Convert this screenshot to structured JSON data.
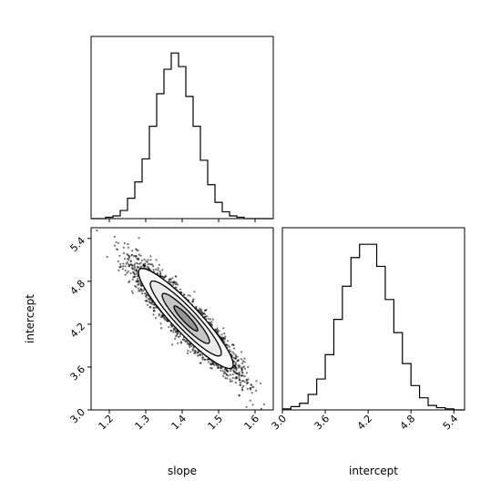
{
  "chart_data": [
    {
      "type": "histogram",
      "panel": "top-left",
      "variable": "slope",
      "bin_edges": [
        1.15,
        1.17,
        1.19,
        1.21,
        1.23,
        1.25,
        1.27,
        1.29,
        1.31,
        1.33,
        1.35,
        1.37,
        1.39,
        1.41,
        1.43,
        1.45,
        1.47,
        1.49,
        1.51,
        1.53,
        1.55,
        1.57,
        1.59,
        1.61,
        1.63,
        1.65
      ],
      "counts": [
        0,
        0,
        1,
        2,
        6,
        15,
        27,
        44,
        68,
        92,
        110,
        122,
        112,
        90,
        68,
        43,
        25,
        12,
        5,
        2,
        1,
        0,
        0,
        0,
        0
      ],
      "xlim": [
        1.15,
        1.65
      ]
    },
    {
      "type": "scatter",
      "panel": "bottom-left",
      "xlabel": "slope",
      "ylabel": "intercept",
      "xlim": [
        1.15,
        1.65
      ],
      "ylim": [
        3.0,
        5.55
      ],
      "xticks": [
        "1.2",
        "1.3",
        "1.4",
        "1.5",
        "1.6"
      ],
      "yticks": [
        "3.0",
        "3.6",
        "4.2",
        "4.8",
        "5.4"
      ],
      "center": [
        1.41,
        4.28
      ],
      "sd": [
        0.065,
        0.35
      ],
      "correlation": -0.92,
      "contour_levels_sigma": [
        0.5,
        1.0,
        1.5,
        2.0
      ],
      "density_cells": [
        {
          "x": 1.395,
          "y": 4.35,
          "weight": 1.0
        },
        {
          "x": 1.415,
          "y": 4.2,
          "weight": 0.75
        },
        {
          "x": 1.385,
          "y": 4.5,
          "weight": 0.55
        },
        {
          "x": 1.43,
          "y": 4.05,
          "weight": 0.45
        },
        {
          "x": 1.37,
          "y": 4.6,
          "weight": 0.35
        }
      ]
    },
    {
      "type": "histogram",
      "panel": "bottom-right",
      "xlabel": "intercept",
      "variable": "intercept",
      "bin_edges": [
        3.0,
        3.12,
        3.24,
        3.36,
        3.48,
        3.6,
        3.72,
        3.84,
        3.96,
        4.08,
        4.2,
        4.32,
        4.44,
        4.56,
        4.68,
        4.8,
        4.92,
        5.04,
        5.16,
        5.28,
        5.4,
        5.55
      ],
      "counts": [
        1,
        3,
        6,
        14,
        28,
        50,
        82,
        112,
        138,
        150,
        150,
        130,
        100,
        70,
        42,
        22,
        11,
        4,
        2,
        1,
        0
      ],
      "xlim": [
        3.0,
        5.55
      ],
      "xticks": [
        "3.0",
        "3.6",
        "4.2",
        "4.8",
        "5.4"
      ]
    }
  ]
}
